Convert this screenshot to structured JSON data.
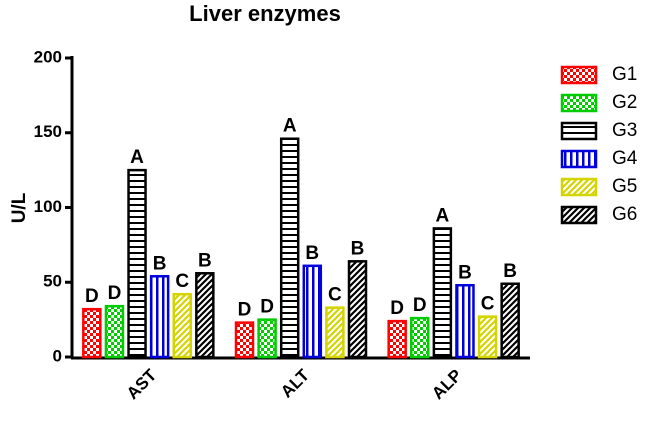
{
  "chart_data": {
    "type": "bar",
    "title": "Liver enzymes",
    "y_label": "U/L",
    "categories": [
      "AST",
      "ALT",
      "ALP"
    ],
    "series": [
      {
        "name": "G1",
        "color": "#ff0000",
        "pattern": "checker",
        "values": [
          32,
          23,
          24
        ],
        "letters": [
          "D",
          "D",
          "D"
        ]
      },
      {
        "name": "G2",
        "color": "#00cc00",
        "pattern": "checker",
        "values": [
          34,
          25,
          26
        ],
        "letters": [
          "D",
          "D",
          "D"
        ]
      },
      {
        "name": "G3",
        "color": "#000000",
        "pattern": "hlines",
        "values": [
          125,
          146,
          86
        ],
        "letters": [
          "A",
          "A",
          "A"
        ]
      },
      {
        "name": "G4",
        "color": "#0000dd",
        "pattern": "vlines",
        "values": [
          54,
          61,
          48
        ],
        "letters": [
          "B",
          "B",
          "B"
        ]
      },
      {
        "name": "G5",
        "color": "#d4d400",
        "pattern": "diag",
        "values": [
          42,
          33,
          27
        ],
        "letters": [
          "C",
          "C",
          "C"
        ]
      },
      {
        "name": "G6",
        "color": "#000000",
        "pattern": "diag",
        "values": [
          56,
          64,
          49
        ],
        "letters": [
          "B",
          "B",
          "B"
        ]
      }
    ],
    "ylim": [
      0,
      200
    ],
    "yticks": [
      0,
      50,
      100,
      150,
      200
    ],
    "legend": "right"
  }
}
